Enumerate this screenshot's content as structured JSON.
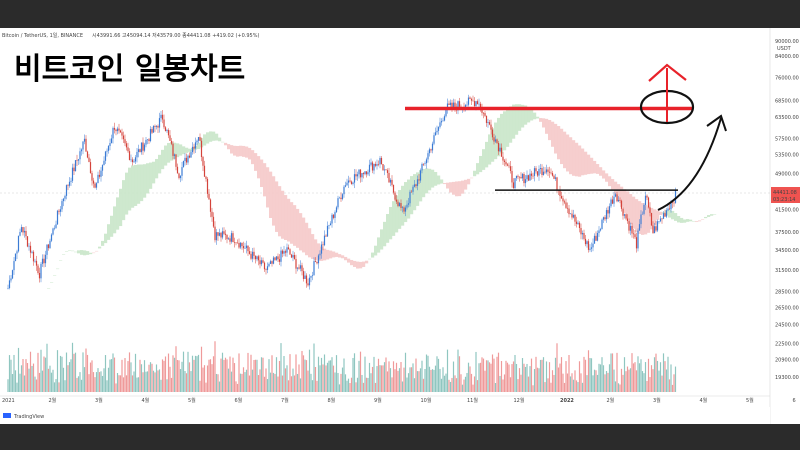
{
  "header": {
    "symbol": "Bitcoin / TetherUS, 1일, BINANCE",
    "ohlc": "시43991.66  고45094.14  저43579.00  종44411.08  +419.02 (+0.95%)"
  },
  "overlay_title": "비트코인 일봉차트",
  "price_badge": {
    "price": "44411.08",
    "countdown": "03:23:14"
  },
  "currency": "USDT",
  "footer": {
    "brand": "TradingView"
  },
  "colors": {
    "up": "#26a69a",
    "down": "#ef5350",
    "candle_up": "#3b7bd4",
    "candle_down": "#d4433b",
    "cloud_green": "#c9e6c9",
    "cloud_red": "#f5c9c9",
    "annotation_red": "#e8222a",
    "annotation_black": "#111111"
  },
  "chart_data": {
    "type": "candlestick",
    "x_tick_labels": [
      "2021",
      "2월",
      "3월",
      "4월",
      "5월",
      "6월",
      "7월",
      "8월",
      "9월",
      "10월",
      "11월",
      "12월",
      "2022",
      "2월",
      "3월",
      "4월",
      "5월",
      "6"
    ],
    "y_tick_labels": [
      "90000.00",
      "84000.00",
      "76000.00",
      "68500.00",
      "63500.00",
      "57500.00",
      "53500.00",
      "49000.00",
      "45000.00",
      "41500.00",
      "37500.00",
      "34500.00",
      "31500.00",
      "28500.00",
      "26500.00",
      "24500.00",
      "22500.00",
      "20900.00",
      "19300.00"
    ],
    "y_range": [
      18000,
      92000
    ],
    "log_scale": true,
    "price_path": [
      {
        "t": "2021-01-01",
        "p": 29000
      },
      {
        "t": "2021-01-10",
        "p": 38500
      },
      {
        "t": "2021-01-22",
        "p": 31000
      },
      {
        "t": "2021-02-08",
        "p": 45000
      },
      {
        "t": "2021-02-21",
        "p": 57000
      },
      {
        "t": "2021-02-28",
        "p": 45500
      },
      {
        "t": "2021-03-13",
        "p": 61000
      },
      {
        "t": "2021-03-25",
        "p": 52000
      },
      {
        "t": "2021-04-14",
        "p": 63500
      },
      {
        "t": "2021-04-25",
        "p": 49000
      },
      {
        "t": "2021-05-08",
        "p": 58500
      },
      {
        "t": "2021-05-19",
        "p": 37000
      },
      {
        "t": "2021-06-01",
        "p": 36500
      },
      {
        "t": "2021-06-22",
        "p": 31500
      },
      {
        "t": "2021-07-06",
        "p": 34500
      },
      {
        "t": "2021-07-20",
        "p": 29800
      },
      {
        "t": "2021-08-14",
        "p": 47000
      },
      {
        "t": "2021-09-06",
        "p": 52000
      },
      {
        "t": "2021-09-21",
        "p": 41000
      },
      {
        "t": "2021-10-01",
        "p": 47500
      },
      {
        "t": "2021-10-20",
        "p": 66000
      },
      {
        "t": "2021-11-10",
        "p": 68500
      },
      {
        "t": "2021-11-26",
        "p": 54000
      },
      {
        "t": "2021-12-04",
        "p": 47000
      },
      {
        "t": "2021-12-27",
        "p": 50500
      },
      {
        "t": "2022-01-10",
        "p": 41500
      },
      {
        "t": "2022-01-24",
        "p": 34500
      },
      {
        "t": "2022-02-10",
        "p": 45000
      },
      {
        "t": "2022-02-24",
        "p": 35500
      },
      {
        "t": "2022-03-02",
        "p": 44500
      },
      {
        "t": "2022-03-07",
        "p": 37500
      },
      {
        "t": "2022-03-22",
        "p": 44411
      }
    ],
    "annotations": {
      "resistance_level": 66000,
      "support_level": 45400,
      "target_arrow": "up"
    }
  }
}
